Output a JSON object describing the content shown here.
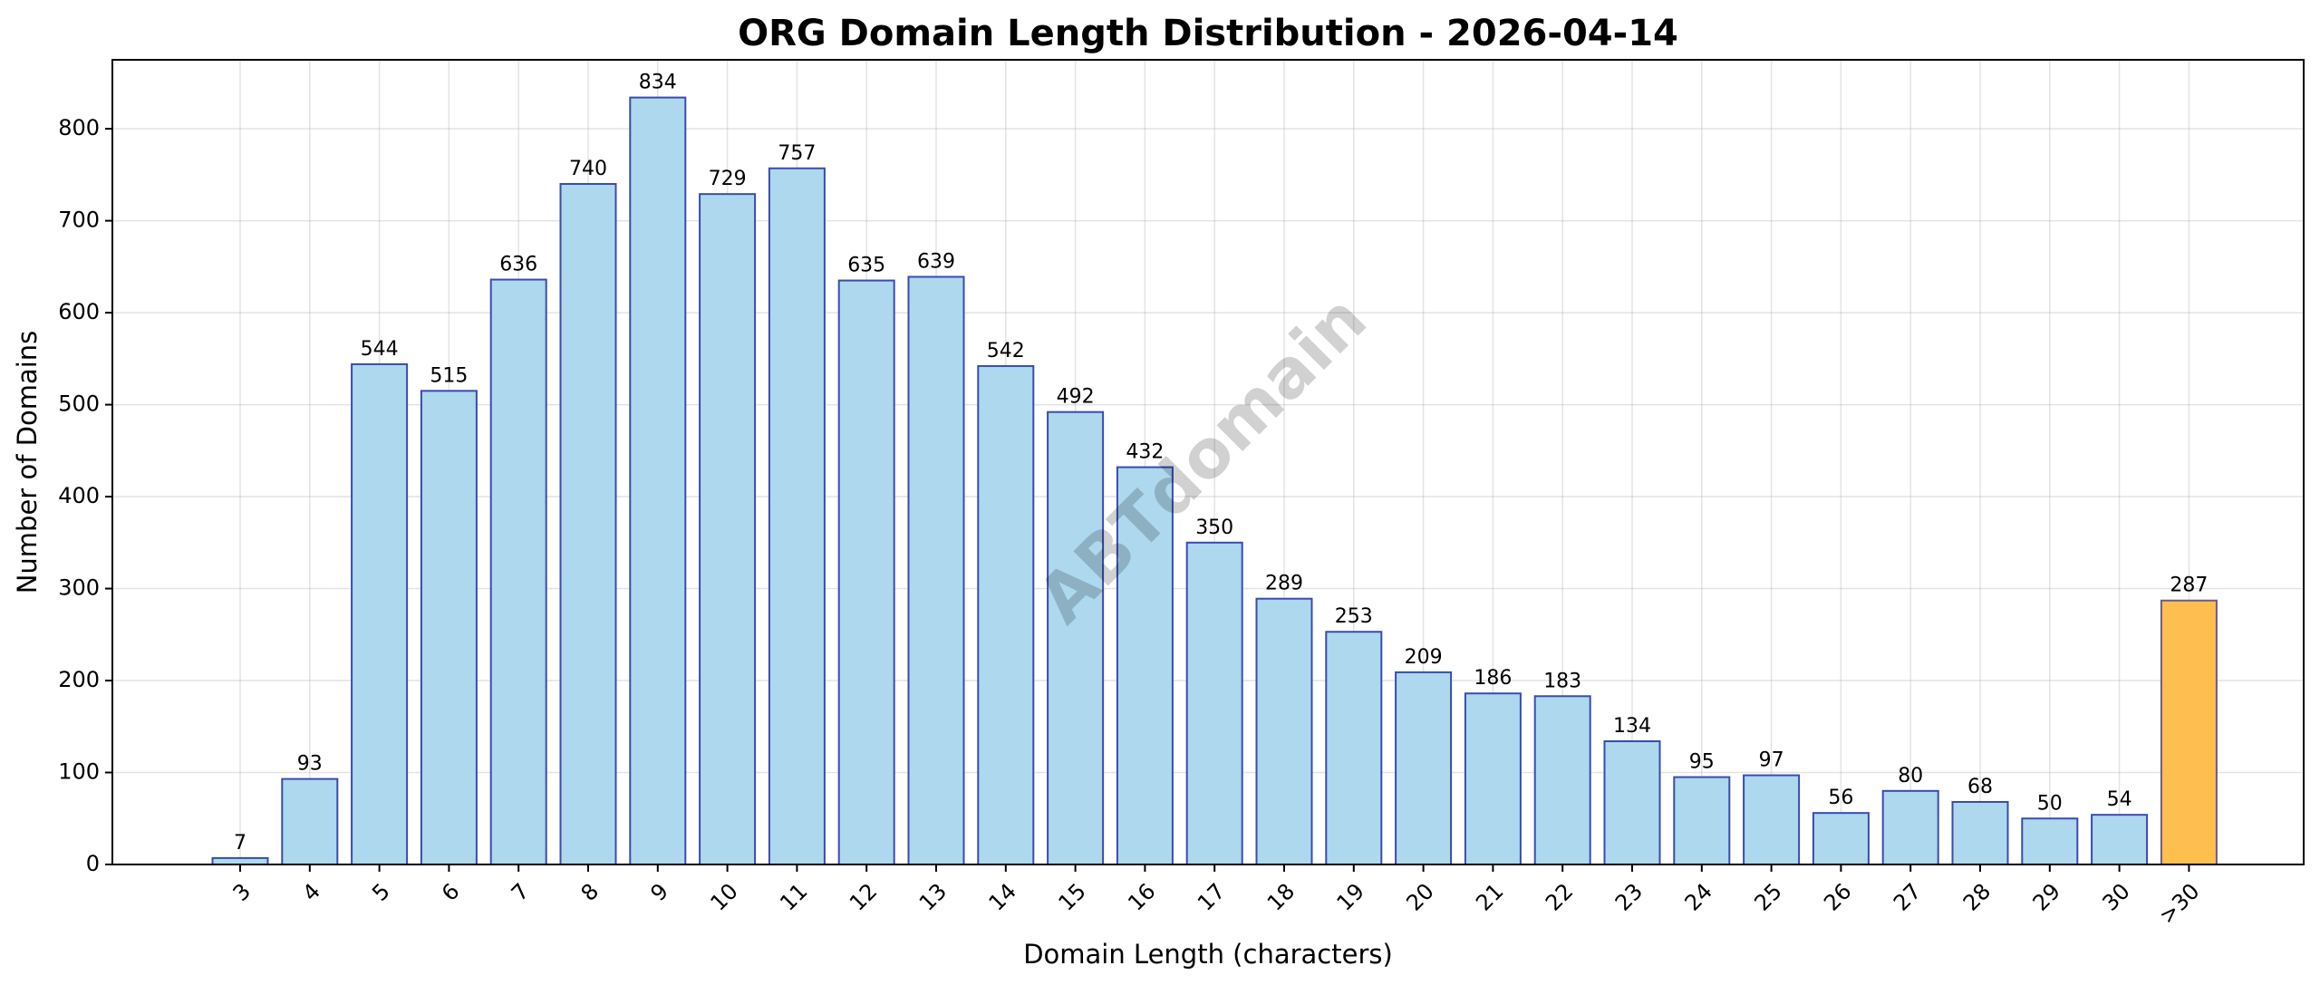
{
  "chart_data": {
    "type": "bar",
    "title": "ORG Domain Length Distribution - 2026-04-14",
    "xlabel": "Domain Length (characters)",
    "ylabel": "Number of Domains",
    "categories": [
      "3",
      "4",
      "5",
      "6",
      "7",
      "8",
      "9",
      "10",
      "11",
      "12",
      "13",
      "14",
      "15",
      "16",
      "17",
      "18",
      "19",
      "20",
      "21",
      "22",
      "23",
      "24",
      "25",
      "26",
      "27",
      "28",
      "29",
      "30",
      ">30"
    ],
    "values": [
      7,
      93,
      544,
      515,
      636,
      740,
      834,
      729,
      757,
      635,
      639,
      542,
      492,
      432,
      350,
      289,
      253,
      209,
      186,
      183,
      134,
      95,
      97,
      56,
      80,
      68,
      50,
      54,
      287
    ],
    "ylim": [
      0,
      875
    ],
    "yticks": [
      0,
      100,
      200,
      300,
      400,
      500,
      600,
      700,
      800
    ],
    "grid": true,
    "legend": "none",
    "watermark": "ABTdomain",
    "colors": {
      "bar_fill": "#add8ee",
      "bar_edge": "#3a4bb0",
      "highlight_fill": "#ffbf4f",
      "highlight_edge": "#6a5a8a"
    },
    "highlight_categories": [
      ">30"
    ]
  }
}
